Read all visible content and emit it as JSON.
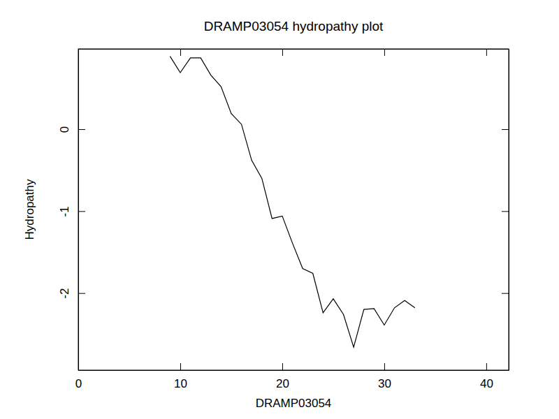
{
  "chart_data": {
    "type": "line",
    "title": "DRAMP03054 hydropathy plot",
    "x_label": "DRAMP03054",
    "y_label": "Hydropathy",
    "x": [
      9,
      10,
      11,
      12,
      13,
      14,
      15,
      16,
      17,
      18,
      19,
      20,
      21,
      22,
      23,
      24,
      25,
      26,
      27,
      28,
      29,
      30,
      31,
      32,
      33
    ],
    "values": [
      0.89,
      0.69,
      0.87,
      0.87,
      0.66,
      0.52,
      0.19,
      0.06,
      -0.38,
      -0.6,
      -1.09,
      -1.06,
      -1.39,
      -1.7,
      -1.76,
      -2.24,
      -2.07,
      -2.26,
      -2.66,
      -2.2,
      -2.19,
      -2.39,
      -2.18,
      -2.09,
      -2.18
    ],
    "color": "#000000",
    "xlim": [
      0,
      42.2
    ],
    "xticks": [
      0,
      10,
      20,
      30,
      40
    ],
    "ylim": [
      -2.94,
      0.98
    ],
    "yticks": [
      -2,
      -1,
      0
    ],
    "grid": false
  }
}
